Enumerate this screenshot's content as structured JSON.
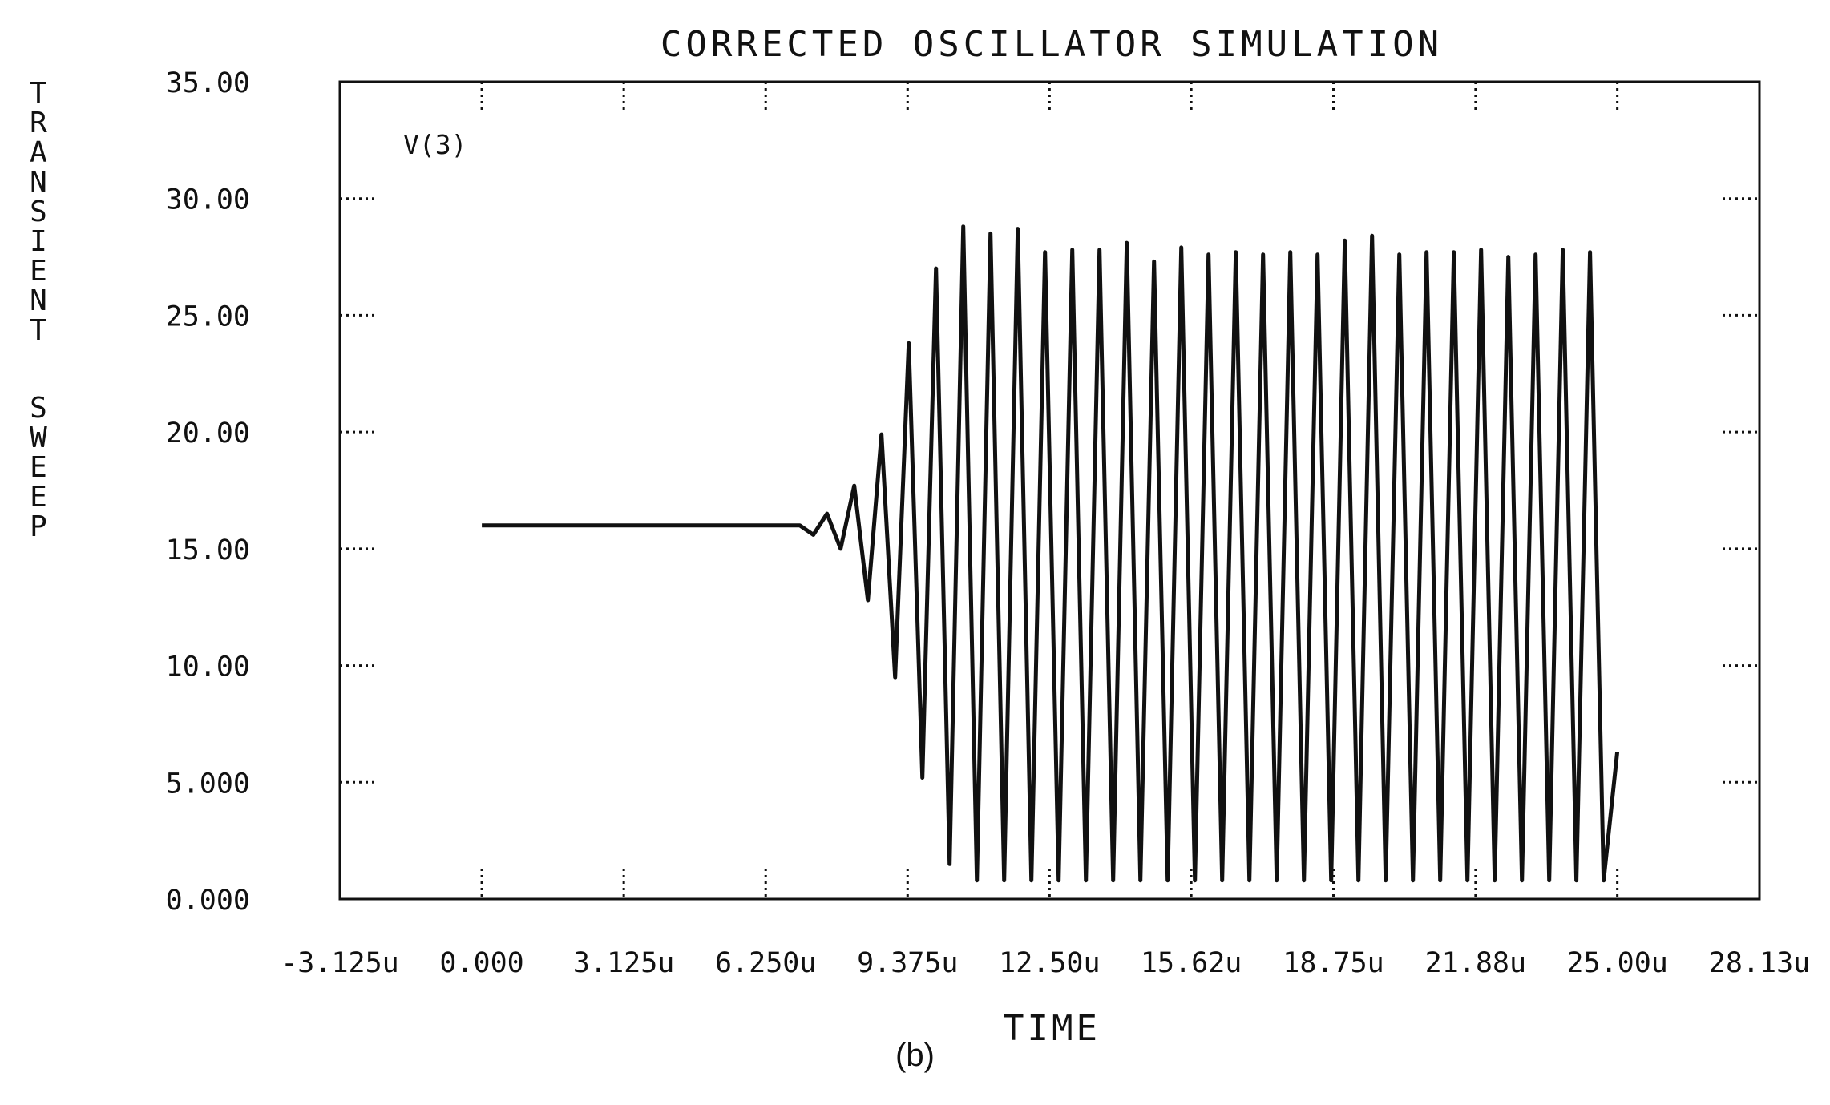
{
  "chart_data": {
    "type": "line",
    "title": "CORRECTED OSCILLATOR SIMULATION",
    "xlabel": "TIME",
    "ylabel": "TRANSIENT SWEEP",
    "xlim": [
      -3.125,
      28.13
    ],
    "x_unit": "us",
    "ylim": [
      0,
      35
    ],
    "x_ticks": [
      -3.125,
      0,
      3.125,
      6.25,
      9.375,
      12.5,
      15.62,
      18.75,
      21.88,
      25.0,
      28.13
    ],
    "x_tick_labels": [
      "-3.125u",
      "0.000",
      "3.125u",
      "6.250u",
      "9.375u",
      "12.50u",
      "15.62u",
      "18.75u",
      "21.88u",
      "25.00u",
      "28.13u"
    ],
    "y_ticks": [
      0,
      5,
      10,
      15,
      20,
      25,
      30,
      35
    ],
    "y_tick_labels": [
      "0.000",
      "5.000",
      "10.00",
      "15.00",
      "20.00",
      "25.00",
      "30.00",
      "35.00"
    ],
    "grid": "dotted tick marks only",
    "series": [
      {
        "name": "V(3)",
        "color": "#111111",
        "x": [
          0,
          7.0,
          7.3,
          7.6,
          7.9,
          8.2,
          8.5,
          8.8,
          9.1,
          9.4,
          9.7,
          10.0,
          10.3,
          10.6,
          10.9,
          11.2,
          11.5,
          11.8,
          12.1,
          12.4,
          12.7,
          13.0,
          13.3,
          13.6,
          13.9,
          14.2,
          14.5,
          14.8,
          15.1,
          15.4,
          15.7,
          16.0,
          16.3,
          16.6,
          16.9,
          17.2,
          17.5,
          17.8,
          18.1,
          18.4,
          18.7,
          19.0,
          19.3,
          19.6,
          19.9,
          20.2,
          20.5,
          20.8,
          21.1,
          21.4,
          21.7,
          22.0,
          22.3,
          22.6,
          22.9,
          23.2,
          23.5,
          23.8,
          24.1,
          24.4,
          24.7,
          25.0
        ],
        "y": [
          16.0,
          16.0,
          15.6,
          16.5,
          15.0,
          17.7,
          12.8,
          19.9,
          9.5,
          23.8,
          5.2,
          27.0,
          1.5,
          28.8,
          0.8,
          28.5,
          0.8,
          28.7,
          0.8,
          27.7,
          0.8,
          27.8,
          0.8,
          27.8,
          0.8,
          28.1,
          0.8,
          27.3,
          0.8,
          27.9,
          0.8,
          27.6,
          0.8,
          27.7,
          0.8,
          27.6,
          0.8,
          27.7,
          0.8,
          27.6,
          0.8,
          28.2,
          0.8,
          28.4,
          0.8,
          27.6,
          0.8,
          27.7,
          0.8,
          27.7,
          0.8,
          27.8,
          0.8,
          27.5,
          0.8,
          27.6,
          0.8,
          27.8,
          0.8,
          27.7,
          0.8,
          6.3
        ]
      }
    ]
  },
  "caption": "(b)"
}
